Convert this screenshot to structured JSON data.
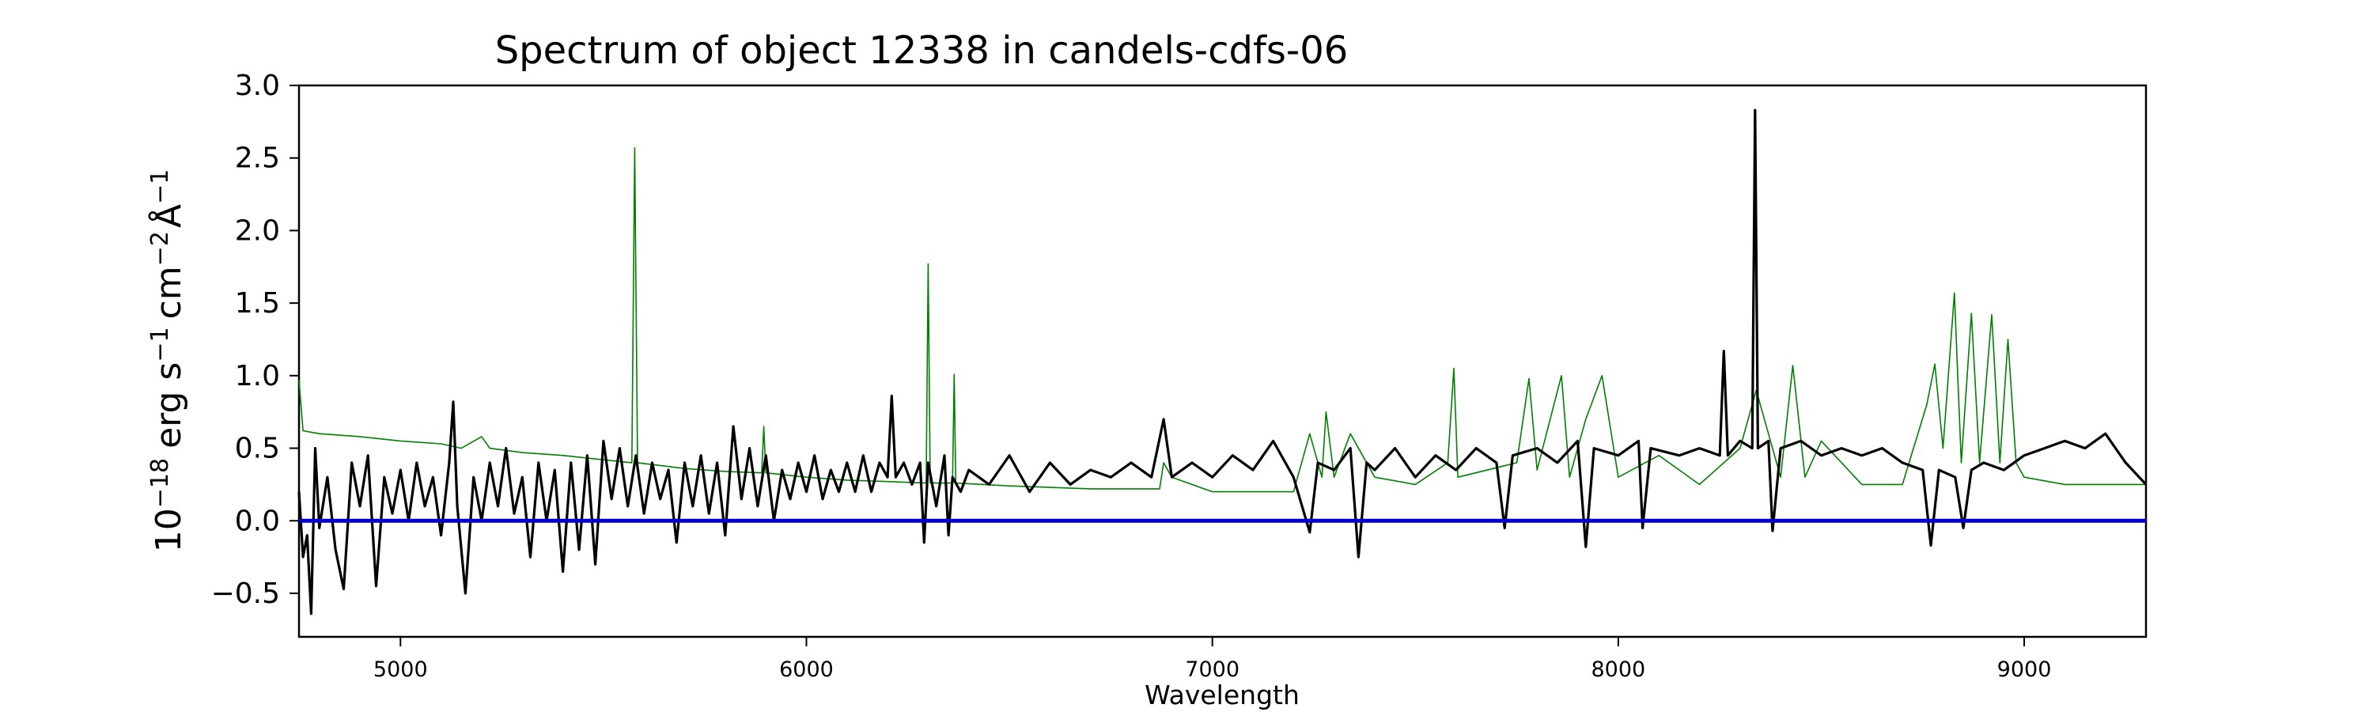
{
  "chart_data": {
    "type": "line",
    "title": "Spectrum of object 12338 in candels-cdfs-06",
    "xlabel": "Wavelength",
    "ylabel": {
      "base": "10",
      "exp": "−18",
      "unit": "erg s",
      "s_exp": "−1",
      "cm": "cm",
      "cm_exp": "−2",
      "ang": "Å",
      "ang_exp": "−1"
    },
    "xlim": [
      4750,
      9300
    ],
    "ylim": [
      -0.8,
      3.0
    ],
    "xticks": [
      5000,
      6000,
      7000,
      8000,
      9000
    ],
    "xtick_labels": [
      "5000",
      "6000",
      "7000",
      "8000",
      "9000"
    ],
    "yticks": [
      -0.5,
      0.0,
      0.5,
      1.0,
      1.5,
      2.0,
      2.5,
      3.0
    ],
    "ytick_labels": [
      "−0.5",
      "0.0",
      "0.5",
      "1.0",
      "1.5",
      "2.0",
      "2.5",
      "3.0"
    ],
    "grid": false,
    "series": [
      {
        "color": "#008000",
        "points": [
          [
            4750,
            0.97
          ],
          [
            4760,
            0.62
          ],
          [
            4800,
            0.6
          ],
          [
            4900,
            0.58
          ],
          [
            5000,
            0.55
          ],
          [
            5100,
            0.53
          ],
          [
            5150,
            0.5
          ],
          [
            5200,
            0.58
          ],
          [
            5220,
            0.5
          ],
          [
            5300,
            0.47
          ],
          [
            5400,
            0.45
          ],
          [
            5500,
            0.42
          ],
          [
            5570,
            0.4
          ],
          [
            5577,
            2.57
          ],
          [
            5584,
            0.4
          ],
          [
            5700,
            0.36
          ],
          [
            5800,
            0.34
          ],
          [
            5890,
            0.33
          ],
          [
            5895,
            0.65
          ],
          [
            5900,
            0.33
          ],
          [
            6000,
            0.3
          ],
          [
            6100,
            0.28
          ],
          [
            6200,
            0.27
          ],
          [
            6295,
            0.26
          ],
          [
            6300,
            1.77
          ],
          [
            6305,
            0.26
          ],
          [
            6360,
            0.26
          ],
          [
            6364,
            1.01
          ],
          [
            6368,
            0.26
          ],
          [
            6500,
            0.24
          ],
          [
            6700,
            0.22
          ],
          [
            6870,
            0.22
          ],
          [
            6880,
            0.4
          ],
          [
            6900,
            0.3
          ],
          [
            7000,
            0.2
          ],
          [
            7200,
            0.2
          ],
          [
            7240,
            0.6
          ],
          [
            7270,
            0.3
          ],
          [
            7280,
            0.75
          ],
          [
            7300,
            0.3
          ],
          [
            7340,
            0.6
          ],
          [
            7400,
            0.3
          ],
          [
            7500,
            0.25
          ],
          [
            7580,
            0.4
          ],
          [
            7595,
            1.05
          ],
          [
            7605,
            0.3
          ],
          [
            7750,
            0.4
          ],
          [
            7780,
            0.98
          ],
          [
            7800,
            0.35
          ],
          [
            7860,
            1.0
          ],
          [
            7880,
            0.3
          ],
          [
            7920,
            0.7
          ],
          [
            7960,
            1.0
          ],
          [
            8000,
            0.3
          ],
          [
            8100,
            0.45
          ],
          [
            8200,
            0.25
          ],
          [
            8300,
            0.5
          ],
          [
            8340,
            0.9
          ],
          [
            8400,
            0.3
          ],
          [
            8430,
            1.07
          ],
          [
            8460,
            0.3
          ],
          [
            8500,
            0.55
          ],
          [
            8600,
            0.25
          ],
          [
            8700,
            0.25
          ],
          [
            8760,
            0.8
          ],
          [
            8780,
            1.08
          ],
          [
            8800,
            0.5
          ],
          [
            8828,
            1.57
          ],
          [
            8845,
            0.4
          ],
          [
            8870,
            1.43
          ],
          [
            8890,
            0.4
          ],
          [
            8920,
            1.42
          ],
          [
            8940,
            0.4
          ],
          [
            8960,
            1.25
          ],
          [
            8980,
            0.4
          ],
          [
            9000,
            0.3
          ],
          [
            9100,
            0.25
          ],
          [
            9200,
            0.25
          ],
          [
            9300,
            0.25
          ]
        ]
      },
      {
        "color": "#000000",
        "points": [
          [
            4750,
            0.2
          ],
          [
            4760,
            -0.25
          ],
          [
            4770,
            -0.1
          ],
          [
            4780,
            -0.64
          ],
          [
            4790,
            0.5
          ],
          [
            4800,
            -0.05
          ],
          [
            4820,
            0.3
          ],
          [
            4840,
            -0.2
          ],
          [
            4860,
            -0.47
          ],
          [
            4880,
            0.4
          ],
          [
            4900,
            0.1
          ],
          [
            4920,
            0.45
          ],
          [
            4940,
            -0.45
          ],
          [
            4960,
            0.3
          ],
          [
            4980,
            0.05
          ],
          [
            5000,
            0.35
          ],
          [
            5020,
            0.0
          ],
          [
            5040,
            0.4
          ],
          [
            5060,
            0.1
          ],
          [
            5080,
            0.3
          ],
          [
            5100,
            -0.1
          ],
          [
            5120,
            0.4
          ],
          [
            5130,
            0.82
          ],
          [
            5140,
            0.1
          ],
          [
            5160,
            -0.5
          ],
          [
            5180,
            0.3
          ],
          [
            5200,
            0.0
          ],
          [
            5220,
            0.4
          ],
          [
            5240,
            0.1
          ],
          [
            5260,
            0.5
          ],
          [
            5280,
            0.05
          ],
          [
            5300,
            0.3
          ],
          [
            5320,
            -0.25
          ],
          [
            5340,
            0.4
          ],
          [
            5360,
            0.0
          ],
          [
            5380,
            0.35
          ],
          [
            5400,
            -0.35
          ],
          [
            5420,
            0.4
          ],
          [
            5440,
            -0.2
          ],
          [
            5460,
            0.45
          ],
          [
            5480,
            -0.3
          ],
          [
            5500,
            0.55
          ],
          [
            5520,
            0.15
          ],
          [
            5540,
            0.5
          ],
          [
            5560,
            0.1
          ],
          [
            5580,
            0.45
          ],
          [
            5600,
            0.05
          ],
          [
            5620,
            0.4
          ],
          [
            5640,
            0.15
          ],
          [
            5660,
            0.35
          ],
          [
            5680,
            -0.15
          ],
          [
            5700,
            0.4
          ],
          [
            5720,
            0.1
          ],
          [
            5740,
            0.45
          ],
          [
            5760,
            0.05
          ],
          [
            5780,
            0.4
          ],
          [
            5800,
            -0.1
          ],
          [
            5820,
            0.65
          ],
          [
            5840,
            0.15
          ],
          [
            5860,
            0.5
          ],
          [
            5880,
            0.1
          ],
          [
            5900,
            0.45
          ],
          [
            5920,
            0.0
          ],
          [
            5940,
            0.35
          ],
          [
            5960,
            0.15
          ],
          [
            5980,
            0.4
          ],
          [
            6000,
            0.2
          ],
          [
            6020,
            0.45
          ],
          [
            6040,
            0.15
          ],
          [
            6060,
            0.35
          ],
          [
            6080,
            0.2
          ],
          [
            6100,
            0.4
          ],
          [
            6120,
            0.2
          ],
          [
            6140,
            0.45
          ],
          [
            6160,
            0.2
          ],
          [
            6180,
            0.4
          ],
          [
            6200,
            0.3
          ],
          [
            6210,
            0.86
          ],
          [
            6220,
            0.3
          ],
          [
            6240,
            0.4
          ],
          [
            6260,
            0.25
          ],
          [
            6280,
            0.4
          ],
          [
            6290,
            -0.15
          ],
          [
            6300,
            0.4
          ],
          [
            6320,
            0.1
          ],
          [
            6340,
            0.45
          ],
          [
            6350,
            -0.1
          ],
          [
            6360,
            0.3
          ],
          [
            6380,
            0.2
          ],
          [
            6400,
            0.35
          ],
          [
            6450,
            0.25
          ],
          [
            6500,
            0.45
          ],
          [
            6550,
            0.2
          ],
          [
            6600,
            0.4
          ],
          [
            6650,
            0.25
          ],
          [
            6700,
            0.35
          ],
          [
            6750,
            0.3
          ],
          [
            6800,
            0.4
          ],
          [
            6850,
            0.3
          ],
          [
            6880,
            0.7
          ],
          [
            6900,
            0.3
          ],
          [
            6950,
            0.4
          ],
          [
            7000,
            0.3
          ],
          [
            7050,
            0.45
          ],
          [
            7100,
            0.35
          ],
          [
            7150,
            0.55
          ],
          [
            7200,
            0.3
          ],
          [
            7240,
            -0.08
          ],
          [
            7260,
            0.4
          ],
          [
            7300,
            0.35
          ],
          [
            7340,
            0.5
          ],
          [
            7360,
            -0.25
          ],
          [
            7380,
            0.4
          ],
          [
            7400,
            0.35
          ],
          [
            7450,
            0.5
          ],
          [
            7500,
            0.3
          ],
          [
            7550,
            0.45
          ],
          [
            7600,
            0.35
          ],
          [
            7650,
            0.5
          ],
          [
            7700,
            0.4
          ],
          [
            7720,
            -0.05
          ],
          [
            7740,
            0.45
          ],
          [
            7800,
            0.5
          ],
          [
            7850,
            0.4
          ],
          [
            7900,
            0.55
          ],
          [
            7920,
            -0.18
          ],
          [
            7940,
            0.5
          ],
          [
            8000,
            0.45
          ],
          [
            8050,
            0.55
          ],
          [
            8060,
            -0.05
          ],
          [
            8080,
            0.5
          ],
          [
            8150,
            0.45
          ],
          [
            8200,
            0.5
          ],
          [
            8250,
            0.45
          ],
          [
            8260,
            1.17
          ],
          [
            8270,
            0.45
          ],
          [
            8300,
            0.55
          ],
          [
            8330,
            0.5
          ],
          [
            8337,
            2.83
          ],
          [
            8344,
            0.5
          ],
          [
            8370,
            0.55
          ],
          [
            8380,
            -0.07
          ],
          [
            8400,
            0.5
          ],
          [
            8450,
            0.55
          ],
          [
            8500,
            0.45
          ],
          [
            8550,
            0.5
          ],
          [
            8600,
            0.45
          ],
          [
            8650,
            0.5
          ],
          [
            8700,
            0.4
          ],
          [
            8750,
            0.35
          ],
          [
            8770,
            -0.17
          ],
          [
            8790,
            0.35
          ],
          [
            8830,
            0.3
          ],
          [
            8850,
            -0.05
          ],
          [
            8870,
            0.35
          ],
          [
            8900,
            0.4
          ],
          [
            8950,
            0.35
          ],
          [
            9000,
            0.45
          ],
          [
            9050,
            0.5
          ],
          [
            9100,
            0.55
          ],
          [
            9150,
            0.5
          ],
          [
            9200,
            0.6
          ],
          [
            9250,
            0.4
          ],
          [
            9300,
            0.25
          ]
        ]
      }
    ],
    "reference_lines": [
      {
        "y": 0.0,
        "color": "#0000cc"
      }
    ]
  }
}
